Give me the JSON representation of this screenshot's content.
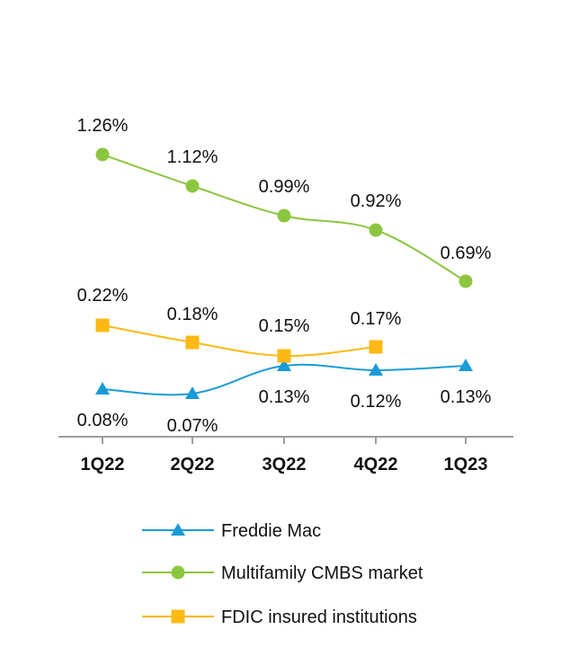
{
  "chart_data": {
    "type": "line",
    "categories": [
      "1Q22",
      "2Q22",
      "3Q22",
      "4Q22",
      "1Q23"
    ],
    "series": [
      {
        "name": "Freddie Mac",
        "values": [
          0.08,
          0.07,
          0.13,
          0.12,
          0.13
        ],
        "labels": [
          "0.08%",
          "0.07%",
          "0.13%",
          "0.12%",
          "0.13%"
        ],
        "color": "#1a9bd7",
        "marker": "triangle"
      },
      {
        "name": "Multifamily CMBS market",
        "values": [
          1.26,
          1.12,
          0.99,
          0.92,
          0.69
        ],
        "labels": [
          "1.26%",
          "1.12%",
          "0.99%",
          "0.92%",
          "0.69%"
        ],
        "color": "#8cc63f",
        "marker": "circle"
      },
      {
        "name": "FDIC insured institutions",
        "values": [
          0.22,
          0.18,
          0.15,
          0.17,
          null
        ],
        "labels": [
          "0.22%",
          "0.18%",
          "0.15%",
          "0.17%",
          null
        ],
        "color": "#fdb913",
        "marker": "square"
      }
    ],
    "y_unit": "%",
    "title": "",
    "xlabel": "",
    "ylabel": "",
    "grid": false,
    "legend_position": "bottom-center",
    "axis_color": "#9e9e9e"
  }
}
